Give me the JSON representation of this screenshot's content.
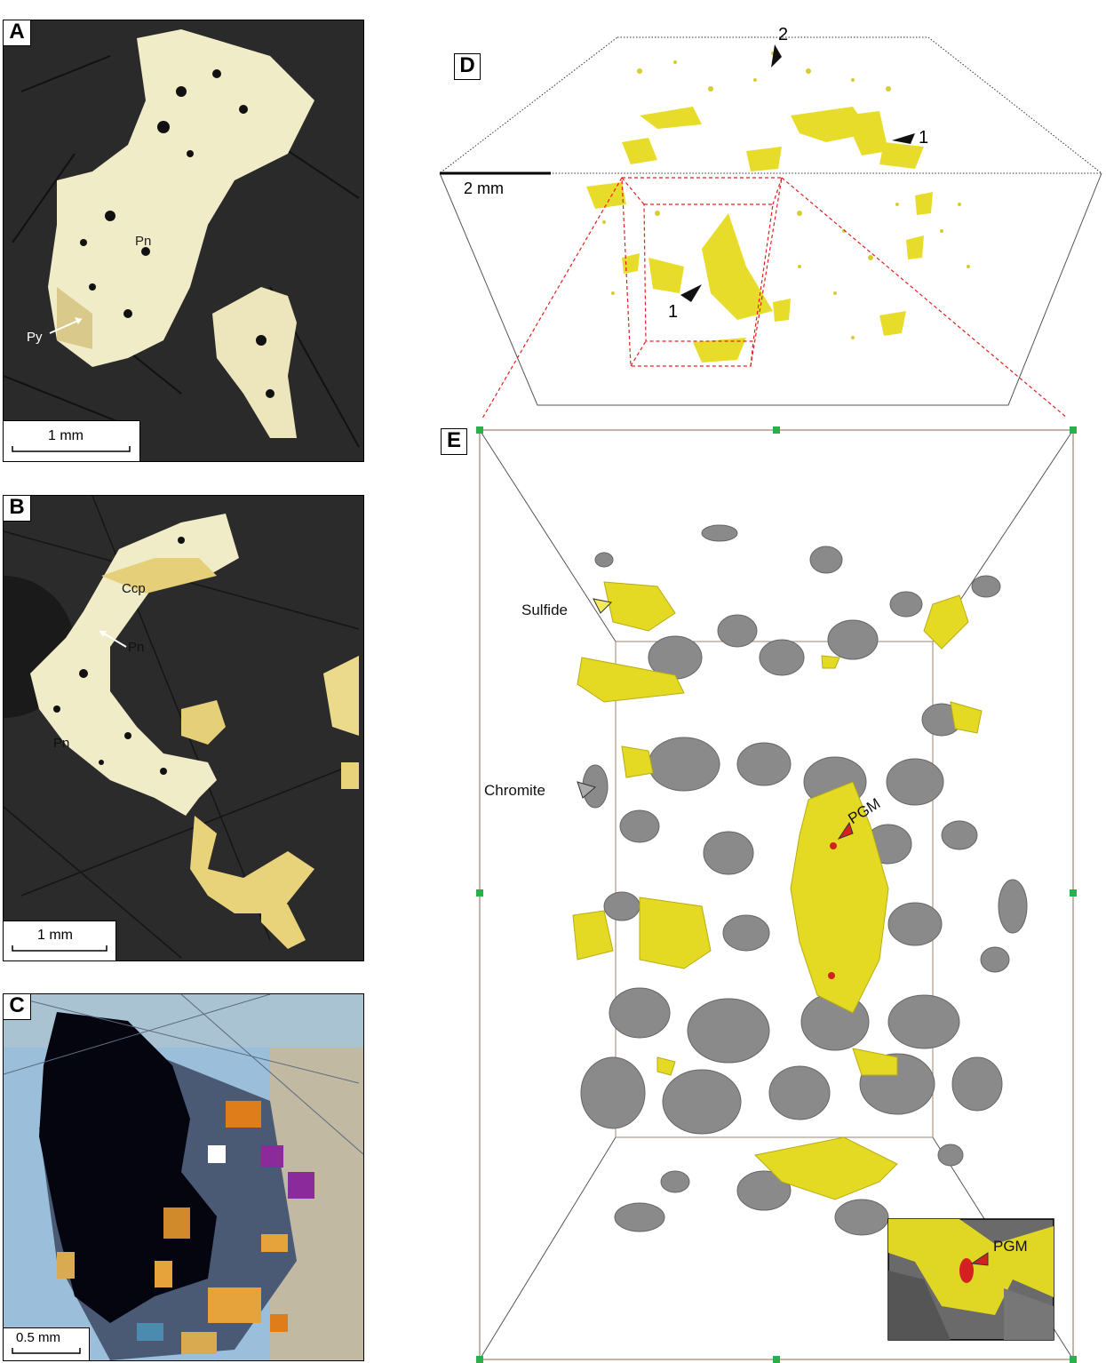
{
  "panels": {
    "a": {
      "letter": "A",
      "scale": "1 mm",
      "labels": {
        "pn": "Pn",
        "py": "Py"
      }
    },
    "b": {
      "letter": "B",
      "scale": "1 mm",
      "labels": {
        "ccp": "Ccp",
        "pn1": "Pn",
        "pn2": "Pn"
      }
    },
    "c": {
      "letter": "C",
      "scale": "0.5 mm"
    },
    "d": {
      "letter": "D",
      "scale": "2 mm",
      "arrows": {
        "a1": "1",
        "a2": "2",
        "a3": "1"
      }
    },
    "e": {
      "letter": "E",
      "labels": {
        "sulfide": "Sulfide",
        "chromite": "Chromite",
        "pgm": "PGM",
        "pgm_inset": "PGM"
      }
    }
  },
  "colors": {
    "sulfide_yellow": "#e8dc2a",
    "chromite_grey": "#8a8a8a",
    "pgm_red": "#d42020",
    "photo_dark": "#1e1e1e",
    "pentlandite": "#f3eed2",
    "chalcopyrite": "#e6cf7a",
    "xpl_blue": "#8fb6d6"
  }
}
